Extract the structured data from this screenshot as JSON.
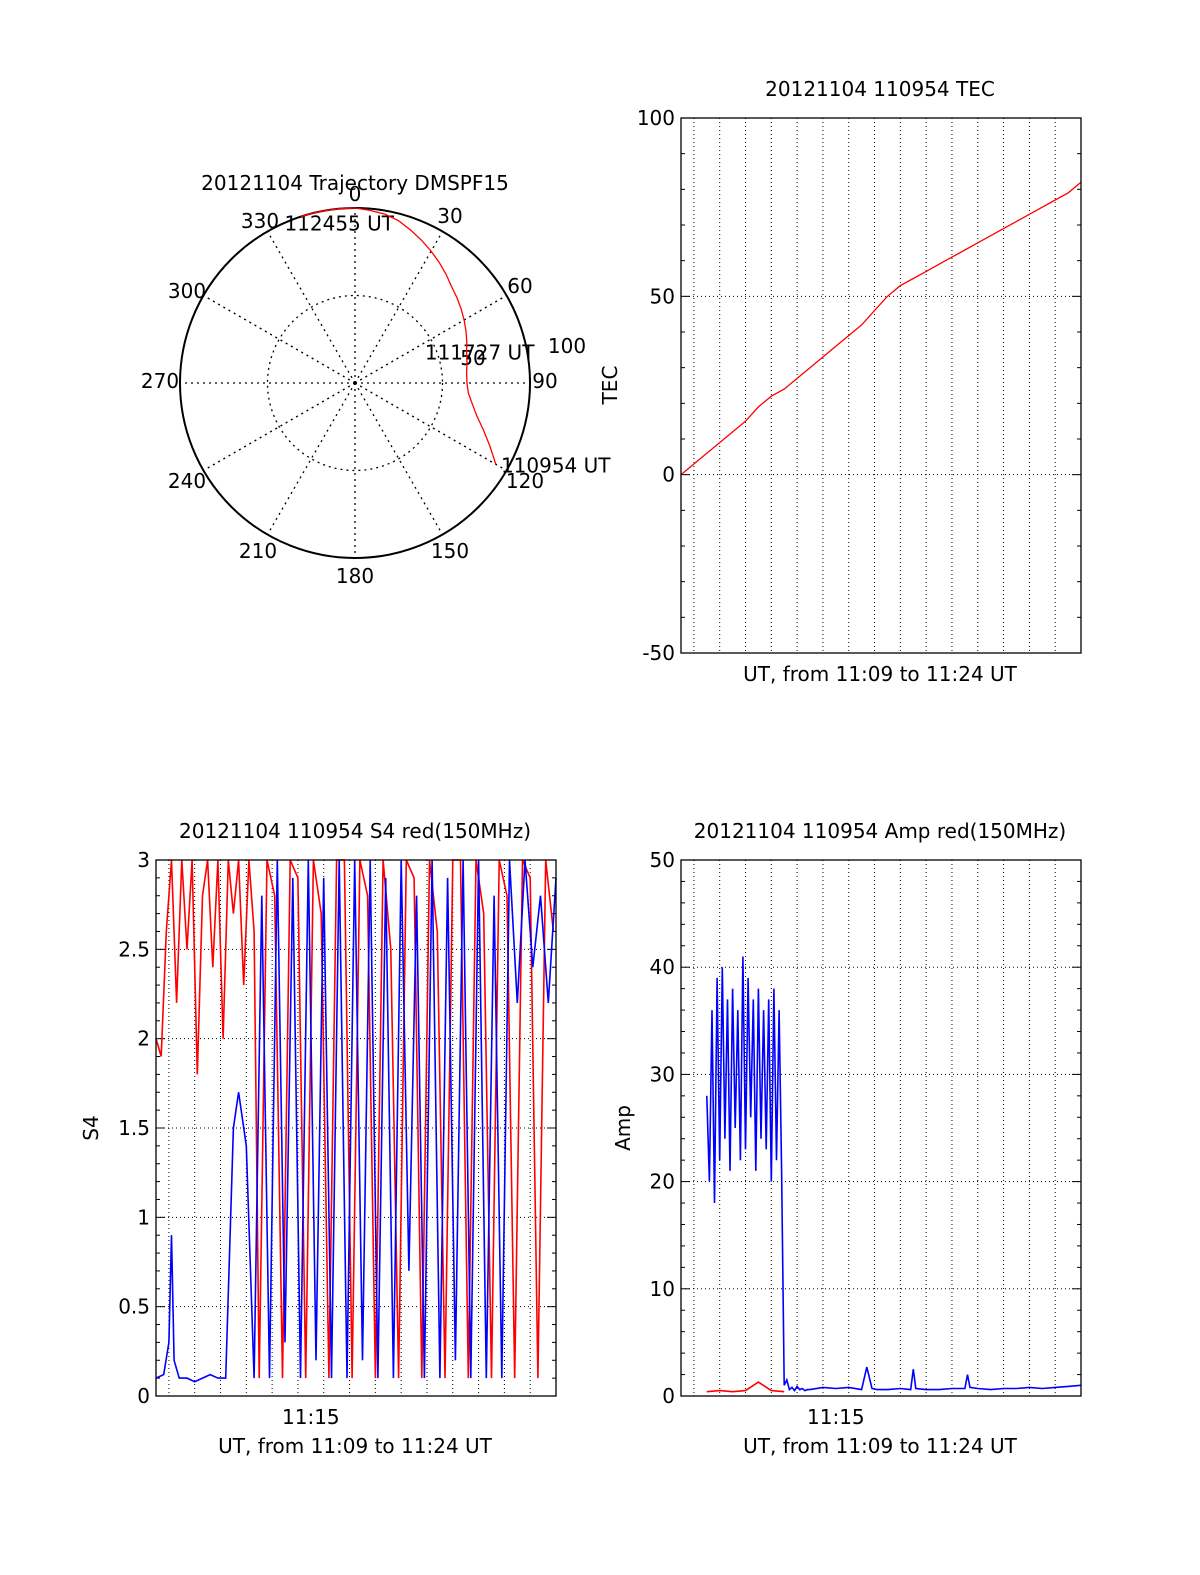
{
  "colors": {
    "red": "#ff0000",
    "blue": "#0000ff",
    "axis": "#000000"
  },
  "chart_data": [
    {
      "id": "trajectory",
      "type": "polar",
      "title": "20121104 Trajectory DMSPF15",
      "angle_labels": [
        "0",
        "30",
        "60",
        "90",
        "120",
        "150",
        "180",
        "210",
        "240",
        "270",
        "300",
        "330"
      ],
      "radial_ticks": [
        {
          "value": 50,
          "label": "50"
        },
        {
          "value": 100,
          "label": "100"
        }
      ],
      "rmax": 100,
      "series": [
        {
          "color": "red",
          "points": [
            [
              120,
              93
            ],
            [
              115,
              85
            ],
            [
              110,
              78
            ],
            [
              105,
              72
            ],
            [
              100,
              68
            ],
            [
              95,
              65
            ],
            [
              90,
              64
            ],
            [
              85,
              64
            ],
            [
              80,
              65
            ],
            [
              75,
              66
            ],
            [
              70,
              68
            ],
            [
              65,
              70
            ],
            [
              60,
              72
            ],
            [
              55,
              74
            ],
            [
              50,
              76
            ],
            [
              45,
              78
            ],
            [
              40,
              81
            ],
            [
              35,
              84
            ],
            [
              30,
              87
            ],
            [
              25,
              90
            ],
            [
              20,
              93
            ],
            [
              15,
              96
            ],
            [
              10,
              98
            ],
            [
              5,
              99
            ],
            [
              0,
              100
            ],
            [
              355,
              100
            ],
            [
              350,
              100
            ],
            [
              345,
              100
            ],
            [
              342,
              100
            ]
          ]
        }
      ],
      "annotations": [
        {
          "text": "112455 UT",
          "angle": 338,
          "r": 100
        },
        {
          "text": "111727 UT",
          "angle": 72,
          "r": 66
        },
        {
          "text": "110954 UT",
          "angle": 120,
          "r": 93
        }
      ]
    },
    {
      "id": "tec",
      "type": "line",
      "title": "20121104 110954 TEC",
      "ylabel": "TEC",
      "xlabel": "UT, from 11:09 to 11:24 UT",
      "ylim": [
        -50,
        100
      ],
      "yticks": [
        -50,
        0,
        50,
        100
      ],
      "xlim": [
        0,
        15.5
      ],
      "x_unit": "minutes after 11:09",
      "grid": true,
      "series": [
        {
          "color": "red",
          "x": [
            0,
            0.5,
            1,
            1.5,
            2,
            2.5,
            3,
            3.5,
            4,
            4.5,
            5,
            5.5,
            6,
            6.5,
            7,
            7.5,
            8,
            8.5,
            9,
            9.5,
            10,
            10.5,
            11,
            11.5,
            12,
            12.5,
            13,
            13.5,
            14,
            14.5,
            15,
            15.5
          ],
          "y": [
            0,
            3,
            6,
            9,
            12,
            15,
            19,
            22,
            24,
            27,
            30,
            33,
            36,
            39,
            42,
            46,
            50,
            53,
            55,
            57,
            59,
            61,
            63,
            65,
            67,
            69,
            71,
            73,
            75,
            77,
            79,
            82
          ]
        }
      ]
    },
    {
      "id": "s4",
      "type": "line",
      "title": "20121104 110954 S4 red(150MHz)",
      "ylabel": "S4",
      "xlabel": "UT, from 11:09 to 11:24 UT",
      "ylim": [
        0,
        3
      ],
      "yticks": [
        "0",
        "0.5",
        "1",
        "1.5",
        "2",
        "2.5",
        "3"
      ],
      "xticks": [
        {
          "value": 6,
          "label": "11:15"
        }
      ],
      "xlim": [
        0,
        15.5
      ],
      "x_unit": "minutes after 11:09",
      "grid": true,
      "series": [
        {
          "color": "red",
          "x": [
            0,
            0.2,
            0.4,
            0.6,
            0.8,
            1,
            1.2,
            1.4,
            1.6,
            1.8,
            2,
            2.2,
            2.4,
            2.6,
            2.8,
            3,
            3.2,
            3.4,
            3.6,
            3.8,
            4,
            4.3,
            4.6,
            4.9,
            5.2,
            5.5,
            5.8,
            6.1,
            6.4,
            6.7,
            7,
            7.3,
            7.6,
            7.9,
            8.2,
            8.5,
            8.8,
            9.1,
            9.4,
            9.7,
            10,
            10.3,
            10.6,
            10.9,
            11.2,
            11.5,
            11.8,
            12.1,
            12.4,
            12.7,
            13,
            13.3,
            13.6,
            13.9,
            14.2,
            14.5,
            14.8,
            15.1,
            15.4
          ],
          "y": [
            2,
            1.9,
            2.6,
            3,
            2.2,
            3,
            2.5,
            3,
            1.8,
            2.8,
            3,
            2.4,
            3,
            2.0,
            3,
            2.7,
            3,
            2.3,
            3,
            2.6,
            0.1,
            3,
            2.8,
            0.1,
            3,
            2.9,
            0.1,
            3,
            2.7,
            0.1,
            3,
            3,
            0.1,
            3,
            2.8,
            0.1,
            3,
            2.5,
            0.1,
            3,
            2.9,
            0.1,
            3,
            2.6,
            0.1,
            3,
            3,
            0.1,
            3,
            2.7,
            0.1,
            3,
            2.8,
            0.1,
            3,
            2.9,
            0.1,
            3,
            2.6
          ]
        },
        {
          "color": "blue",
          "x": [
            0,
            0.3,
            0.5,
            0.6,
            0.7,
            0.9,
            1.2,
            1.5,
            1.8,
            2.1,
            2.4,
            2.7,
            3.0,
            3.2,
            3.5,
            3.8,
            4.1,
            4.4,
            4.7,
            5.0,
            5.3,
            5.6,
            5.9,
            6.2,
            6.5,
            6.8,
            7.1,
            7.4,
            7.7,
            8.0,
            8.3,
            8.6,
            8.9,
            9.2,
            9.5,
            9.8,
            10.1,
            10.4,
            10.7,
            11.0,
            11.3,
            11.6,
            11.9,
            12.2,
            12.5,
            12.8,
            13.1,
            13.4,
            13.7,
            14.0,
            14.3,
            14.6,
            14.9,
            15.2,
            15.5
          ],
          "y": [
            0.1,
            0.12,
            0.3,
            0.9,
            0.2,
            0.1,
            0.1,
            0.08,
            0.1,
            0.12,
            0.1,
            0.1,
            1.5,
            1.7,
            1.4,
            0.1,
            2.8,
            0.1,
            3,
            0.3,
            2.9,
            0.1,
            3,
            0.2,
            2.9,
            0.1,
            3,
            0.1,
            3,
            0.2,
            3,
            0.1,
            2.9,
            0.1,
            3,
            0.7,
            2.8,
            0.1,
            3,
            0.1,
            2.9,
            0.2,
            3,
            0.1,
            3,
            0.1,
            2.8,
            0.1,
            3,
            2.2,
            3,
            2.4,
            2.8,
            2.2,
            2.9
          ]
        }
      ]
    },
    {
      "id": "amp",
      "type": "line",
      "title": "20121104 110954 Amp red(150MHz)",
      "ylabel": "Amp",
      "xlabel": "UT, from 11:09 to 11:24 UT",
      "ylim": [
        0,
        50
      ],
      "yticks": [
        0,
        10,
        20,
        30,
        40,
        50
      ],
      "xticks": [
        {
          "value": 6,
          "label": "11:15"
        }
      ],
      "xlim": [
        0,
        15.5
      ],
      "x_unit": "minutes after 11:09",
      "grid": true,
      "series": [
        {
          "color": "blue",
          "x": [
            1.0,
            1.1,
            1.2,
            1.3,
            1.4,
            1.5,
            1.6,
            1.7,
            1.8,
            1.9,
            2.0,
            2.1,
            2.2,
            2.3,
            2.4,
            2.5,
            2.6,
            2.7,
            2.8,
            2.9,
            3.0,
            3.1,
            3.2,
            3.3,
            3.4,
            3.5,
            3.6,
            3.7,
            3.8,
            3.9,
            4.0,
            4.1,
            4.2,
            4.3,
            4.4,
            4.5,
            4.6,
            4.7,
            4.8,
            4.9,
            5.0,
            5.5,
            6.0,
            6.5,
            7.0,
            7.2,
            7.4,
            7.6,
            8.0,
            8.5,
            8.9,
            9.0,
            9.1,
            9.5,
            10.0,
            10.5,
            11.0,
            11.1,
            11.2,
            11.5,
            12.0,
            12.5,
            13.0,
            13.5,
            14.0,
            14.5,
            15.0,
            15.5
          ],
          "y": [
            28,
            20,
            36,
            18,
            39,
            22,
            40,
            24,
            37,
            21,
            38,
            25,
            36,
            22,
            41,
            23,
            39,
            26,
            37,
            21,
            38,
            24,
            36,
            23,
            37,
            20,
            38,
            22,
            36,
            21,
            1,
            1.5,
            0.6,
            0.8,
            0.5,
            0.9,
            0.6,
            0.7,
            0.5,
            0.6,
            0.6,
            0.8,
            0.7,
            0.8,
            0.6,
            2.7,
            0.7,
            0.6,
            0.6,
            0.7,
            0.6,
            2.5,
            0.7,
            0.6,
            0.6,
            0.7,
            0.7,
            2,
            0.8,
            0.7,
            0.6,
            0.7,
            0.7,
            0.8,
            0.7,
            0.8,
            0.9,
            1.0
          ]
        },
        {
          "color": "red",
          "x": [
            1.0,
            1.5,
            2.0,
            2.5,
            3.0,
            3.5,
            4.0
          ],
          "y": [
            0.4,
            0.5,
            0.4,
            0.5,
            1.3,
            0.5,
            0.4
          ]
        }
      ]
    }
  ]
}
